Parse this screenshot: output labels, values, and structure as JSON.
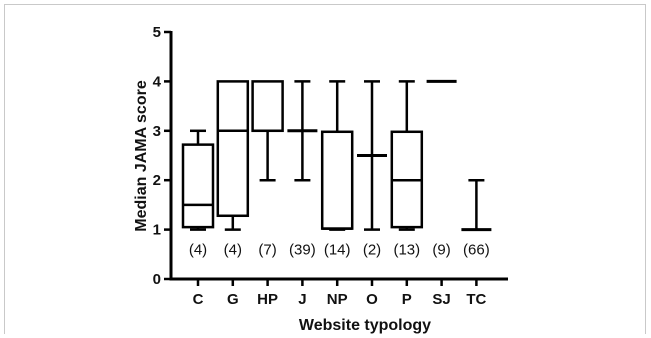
{
  "chart_data": {
    "type": "box",
    "xlabel": "Website typology",
    "ylabel": "Median JAMA score",
    "ylim": [
      0,
      5
    ],
    "yticks": [
      "0",
      "1",
      "2",
      "3",
      "4",
      "5"
    ],
    "categories": [
      "C",
      "G",
      "HP",
      "J",
      "NP",
      "O",
      "P",
      "SJ",
      "TC"
    ],
    "counts": [
      "(4)",
      "(4)",
      "(7)",
      "(39)",
      "(14)",
      "(2)",
      "(13)",
      "(9)",
      "(66)"
    ],
    "boxes": [
      {
        "min": 1,
        "q1": 1.05,
        "median": 1.5,
        "q3": 2.72,
        "max": 3
      },
      {
        "min": 1,
        "q1": 1.28,
        "median": 3,
        "q3": 4,
        "max": 4
      },
      {
        "min": 2,
        "q1": 3,
        "median": 3,
        "q3": 4,
        "max": 4
      },
      {
        "min": 2,
        "q1": 3,
        "median": 3,
        "q3": 3,
        "max": 4
      },
      {
        "min": 1,
        "q1": 1.02,
        "median": 1.02,
        "q3": 2.98,
        "max": 4
      },
      {
        "min": 1,
        "q1": 2.5,
        "median": 2.5,
        "q3": 2.5,
        "max": 4
      },
      {
        "min": 1,
        "q1": 1.05,
        "median": 2,
        "q3": 2.98,
        "max": 4
      },
      {
        "min": 4,
        "q1": 4,
        "median": 4,
        "q3": 4,
        "max": 4
      },
      {
        "min": 1,
        "q1": 1,
        "median": 1,
        "q3": 1,
        "max": 2
      }
    ]
  }
}
